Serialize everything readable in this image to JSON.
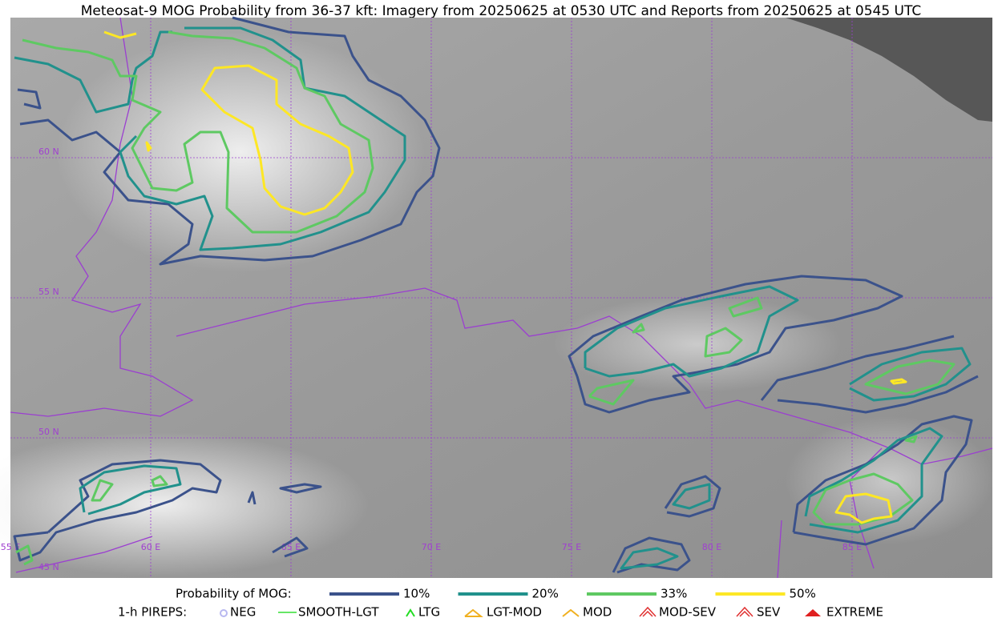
{
  "title": "Meteosat-9 MOG Probability from 36-37 kft: Imagery from 20250625 at 0530 UTC and Reports from 20250625 at 0545 UTC",
  "map": {
    "lat_labels": [
      "60 N",
      "55 N",
      "50 N",
      "45 N"
    ],
    "lon_labels": [
      "55 E",
      "60 E",
      "65 E",
      "70 E",
      "75 E",
      "80 E",
      "85 E"
    ]
  },
  "legend": {
    "probability": {
      "label": "Probability of MOG:",
      "items": [
        {
          "label": "10%",
          "color": "#3b528b"
        },
        {
          "label": "20%",
          "color": "#21918c"
        },
        {
          "label": "33%",
          "color": "#5ec962"
        },
        {
          "label": "50%",
          "color": "#fde725"
        }
      ]
    },
    "pireps": {
      "label": "1-h PIREPS:",
      "items": [
        {
          "label": "NEG"
        },
        {
          "label": "SMOOTH-LGT"
        },
        {
          "label": "LTG"
        },
        {
          "label": "LGT-MOD"
        },
        {
          "label": "MOD"
        },
        {
          "label": "MOD-SEV"
        },
        {
          "label": "SEV"
        },
        {
          "label": "EXTREME"
        }
      ]
    }
  }
}
